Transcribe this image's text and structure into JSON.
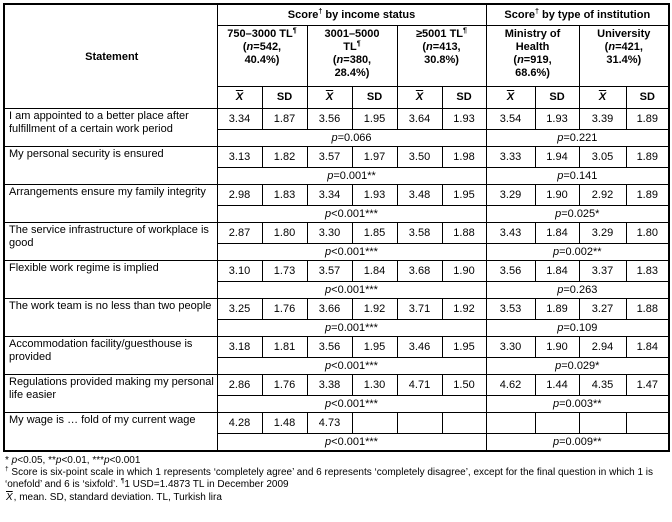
{
  "table": {
    "statement_header": "Statement",
    "groups": [
      {
        "title": [
          {
            "t": "Score"
          },
          {
            "t": "†",
            "s": "sup"
          },
          {
            "t": " by income status"
          }
        ]
      },
      {
        "title": [
          {
            "t": "Score"
          },
          {
            "t": "†",
            "s": "sup"
          },
          {
            "t": " by type of institution"
          }
        ]
      }
    ],
    "columns": [
      {
        "header": [
          {
            "t": "750–3000 TL"
          },
          {
            "t": "¶",
            "s": "sup"
          },
          {
            "br": true
          },
          {
            "t": "("
          },
          {
            "t": "n",
            "s": "i"
          },
          {
            "t": "=542,"
          },
          {
            "br": true
          },
          {
            "t": "40.4%)"
          }
        ]
      },
      {
        "header": [
          {
            "t": "3001–5000"
          },
          {
            "br": true
          },
          {
            "t": "TL"
          },
          {
            "t": "¶",
            "s": "sup"
          },
          {
            "br": true
          },
          {
            "t": "("
          },
          {
            "t": "n",
            "s": "i"
          },
          {
            "t": "=380,"
          },
          {
            "br": true
          },
          {
            "t": "28.4%)"
          }
        ]
      },
      {
        "header": [
          {
            "t": "≥5001 TL"
          },
          {
            "t": "¶",
            "s": "sup"
          },
          {
            "br": true
          },
          {
            "t": "("
          },
          {
            "t": "n",
            "s": "i"
          },
          {
            "t": "=413,"
          },
          {
            "br": true
          },
          {
            "t": "30.8%)"
          }
        ]
      },
      {
        "header": [
          {
            "t": "Ministry of"
          },
          {
            "br": true
          },
          {
            "t": "Health"
          },
          {
            "br": true
          },
          {
            "t": "("
          },
          {
            "t": "n",
            "s": "i"
          },
          {
            "t": "=919,"
          },
          {
            "br": true
          },
          {
            "t": "68.6%)"
          }
        ]
      },
      {
        "header": [
          {
            "t": "University"
          },
          {
            "br": true
          },
          {
            "t": "("
          },
          {
            "t": "n",
            "s": "i"
          },
          {
            "t": "=421,"
          },
          {
            "br": true
          },
          {
            "t": "31.4%)"
          }
        ]
      }
    ],
    "mean_symbol": "X",
    "sd_label": "SD",
    "rows": [
      {
        "statement": "I am appointed to a better place after fulfillment of a certain work period",
        "values": [
          "3.34",
          "1.87",
          "3.56",
          "1.95",
          "3.64",
          "1.93",
          "3.54",
          "1.93",
          "3.39",
          "1.89"
        ],
        "p_income": "p=0.066",
        "p_institution": "p=0.221"
      },
      {
        "statement": "My personal security is ensured",
        "values": [
          "3.13",
          "1.82",
          "3.57",
          "1.97",
          "3.50",
          "1.98",
          "3.33",
          "1.94",
          "3.05",
          "1.89"
        ],
        "p_income": "p=0.001**",
        "p_institution": "p=0.141"
      },
      {
        "statement": "Arrangements ensure my family integrity",
        "values": [
          "2.98",
          "1.83",
          "3.34",
          "1.93",
          "3.48",
          "1.95",
          "3.29",
          "1.90",
          "2.92",
          "1.89"
        ],
        "p_income": "p<0.001***",
        "p_institution": "p=0.025*"
      },
      {
        "statement": "The service infrastructure of workplace is good",
        "values": [
          "2.87",
          "1.80",
          "3.30",
          "1.85",
          "3.58",
          "1.88",
          "3.43",
          "1.84",
          "3.29",
          "1.80"
        ],
        "p_income": "p<0.001***",
        "p_institution": "p=0.002**"
      },
      {
        "statement": "Flexible work regime is implied",
        "values": [
          "3.10",
          "1.73",
          "3.57",
          "1.84",
          "3.68",
          "1.90",
          "3.56",
          "1.84",
          "3.37",
          "1.83"
        ],
        "p_income": "p<0.001***",
        "p_institution": "p=0.263"
      },
      {
        "statement": "The work team is no less than two people",
        "values": [
          "3.25",
          "1.76",
          "3.66",
          "1.92",
          "3.71",
          "1.92",
          "3.53",
          "1.89",
          "3.27",
          "1.88"
        ],
        "p_income": "p=0.001***",
        "p_institution": "p=0.109"
      },
      {
        "statement": "Accommodation facility/guesthouse is provided",
        "values": [
          "3.18",
          "1.81",
          "3.56",
          "1.95",
          "3.46",
          "1.95",
          "3.30",
          "1.90",
          "2.94",
          "1.84"
        ],
        "p_income": "p<0.001***",
        "p_institution": "p=0.029*"
      },
      {
        "statement": "Regulations provided making my personal life easier",
        "values": [
          "2.86",
          "1.76",
          "3.38",
          "1.30",
          "4.71",
          "1.50",
          "4.62",
          "1.44",
          "4.35",
          "1.47"
        ],
        "p_income": "p<0.001***",
        "p_institution": "p=0.003**"
      },
      {
        "statement": "My wage is … fold of my current wage",
        "values": [
          "4.28",
          "1.48",
          "4.73",
          "",
          "",
          "",
          "",
          "",
          "",
          ""
        ],
        "p_income": "p<0.001***",
        "p_institution": "p=0.009**"
      }
    ]
  },
  "footnotes": [
    [
      {
        "t": "* "
      },
      {
        "t": "p",
        "s": "i"
      },
      {
        "t": "<0.05, **"
      },
      {
        "t": "p",
        "s": "i"
      },
      {
        "t": "<0.01, ***"
      },
      {
        "t": "p",
        "s": "i"
      },
      {
        "t": "<0.001"
      }
    ],
    [
      {
        "t": "†",
        "s": "sup"
      },
      {
        "t": " Score is six-point scale in which 1 represents ‘completely agree’ and 6 represents ‘completely disagree’, except for the final question in which 1 is ‘onefold’ and 6 is ‘sixfold’. "
      },
      {
        "t": "¶",
        "s": "sup"
      },
      {
        "t": "1 USD=1.4873 TL in December 2009"
      }
    ],
    [
      {
        "t": "X",
        "s": "mean"
      },
      {
        "t": ", mean. SD, standard deviation. TL, Turkish lira"
      }
    ]
  ]
}
